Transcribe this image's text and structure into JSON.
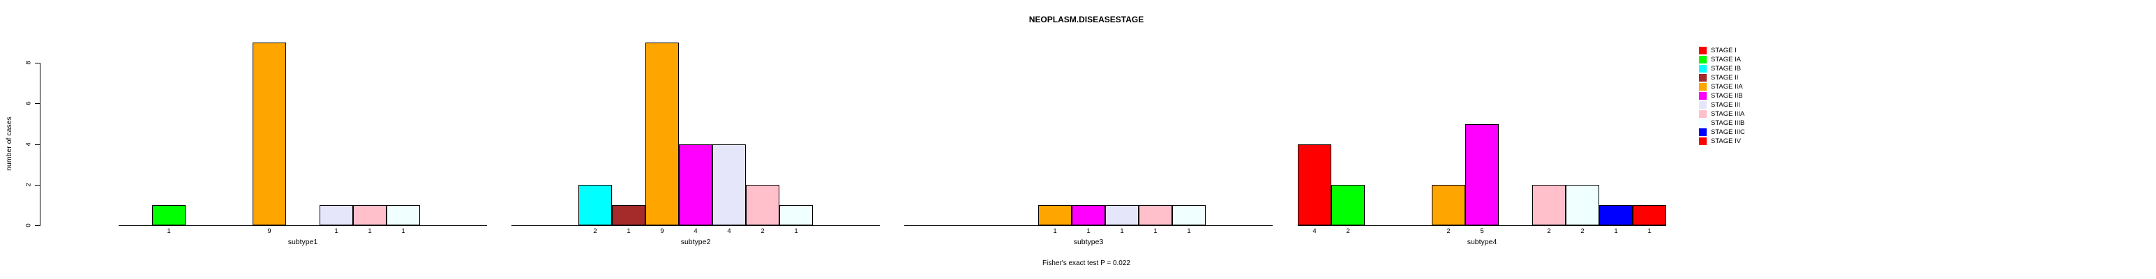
{
  "title": "NEOPLASM.DISEASESTAGE",
  "y_axis": {
    "label": "number of cases",
    "ticks": [
      0,
      2,
      4,
      6,
      8
    ]
  },
  "footnote": "Fisher's exact test P = 0.022",
  "chart_data": {
    "type": "bar",
    "title": "NEOPLASM.DISEASESTAGE",
    "ylabel": "number of cases",
    "ylim": [
      0,
      9
    ],
    "yticks": [
      0,
      2,
      4,
      6,
      8
    ],
    "grid": false,
    "legend_position": "right",
    "categories": [
      "STAGE I",
      "STAGE IA",
      "STAGE IB",
      "STAGE II",
      "STAGE IIA",
      "STAGE IIB",
      "STAGE III",
      "STAGE IIIA",
      "STAGE IIIB",
      "STAGE IIIC",
      "STAGE IV"
    ],
    "series_colors": [
      "#FF0000",
      "#00FF00",
      "#00FFFF",
      "#A52A2A",
      "#FFA500",
      "#FF00FF",
      "#E6E6FA",
      "#FFC0CB",
      "#F0FFFF",
      "#0000FF",
      "#FF0000"
    ],
    "panels": [
      {
        "xlabel": "subtype1",
        "values": [
          0,
          1,
          0,
          0,
          9,
          0,
          1,
          1,
          1,
          0,
          0
        ]
      },
      {
        "xlabel": "subtype2",
        "values": [
          0,
          0,
          2,
          1,
          9,
          4,
          4,
          2,
          1,
          0,
          0
        ]
      },
      {
        "xlabel": "subtype3",
        "values": [
          0,
          0,
          0,
          0,
          1,
          1,
          1,
          1,
          1,
          0,
          0
        ]
      },
      {
        "xlabel": "subtype4",
        "values": [
          4,
          2,
          0,
          0,
          2,
          5,
          0,
          2,
          2,
          1,
          1
        ]
      }
    ],
    "footnote": "Fisher's exact test P = 0.022"
  }
}
